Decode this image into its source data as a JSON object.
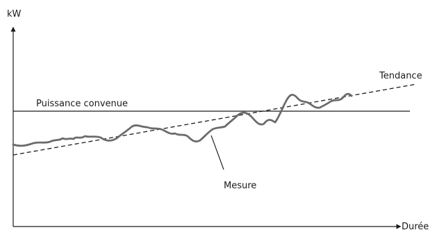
{
  "labels": {
    "y_axis": "kW",
    "x_axis": "Durée",
    "reference": "Puissance convenue",
    "trend": "Tendance",
    "measure": "Mesure"
  },
  "colors": {
    "axis": "#1a1a1a",
    "measure_line": "#6b6b6b",
    "trend_line": "#1a1a1a",
    "reference_line": "#1a1a1a"
  }
}
